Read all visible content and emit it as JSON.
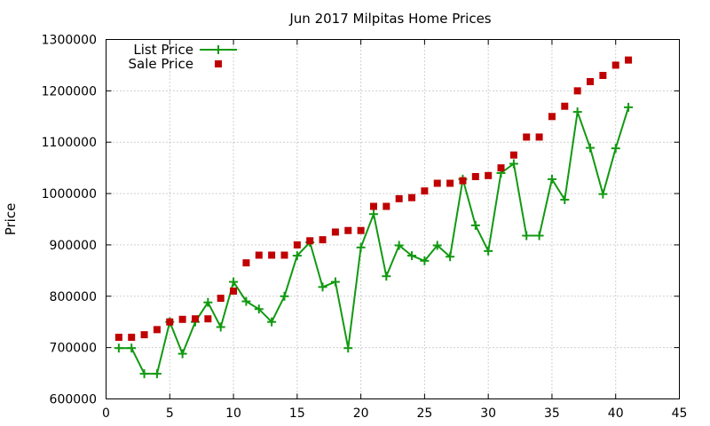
{
  "chart_data": {
    "type": "line",
    "title": "Jun 2017 Milpitas Home Prices",
    "xlabel": "",
    "ylabel": "Price",
    "xlim": [
      0,
      45
    ],
    "ylim": [
      600000,
      1300000
    ],
    "xticks": [
      0,
      5,
      10,
      15,
      20,
      25,
      30,
      35,
      40,
      45
    ],
    "yticks": [
      600000,
      700000,
      800000,
      900000,
      1000000,
      1100000,
      1200000,
      1300000
    ],
    "grid": true,
    "legend_position": "top-left",
    "series": [
      {
        "name": "List Price",
        "style": "line-plus",
        "color": "#119911",
        "x": [
          1,
          2,
          3,
          4,
          5,
          6,
          7,
          8,
          9,
          10,
          11,
          12,
          13,
          14,
          15,
          16,
          17,
          18,
          19,
          20,
          21,
          22,
          23,
          24,
          25,
          26,
          27,
          28,
          29,
          30,
          31,
          32,
          33,
          34,
          35,
          36,
          37,
          38,
          39,
          40,
          41
        ],
        "values": [
          699000,
          699000,
          649000,
          649000,
          750000,
          688000,
          750000,
          788000,
          740000,
          828000,
          790000,
          775000,
          750000,
          800000,
          879000,
          905000,
          818000,
          828000,
          699000,
          895000,
          960000,
          839000,
          899000,
          879000,
          869000,
          899000,
          877000,
          1028000,
          938000,
          888000,
          1040000,
          1058000,
          918000,
          918000,
          1028000,
          988000,
          1159000,
          1089000,
          999000,
          1088000,
          1168000
        ]
      },
      {
        "name": "Sale Price",
        "style": "square-points",
        "color": "#c00000",
        "x": [
          1,
          2,
          3,
          4,
          5,
          6,
          7,
          8,
          9,
          10,
          11,
          12,
          13,
          14,
          15,
          16,
          17,
          18,
          19,
          20,
          21,
          22,
          23,
          24,
          25,
          26,
          27,
          28,
          29,
          30,
          31,
          32,
          33,
          34,
          35,
          36,
          37,
          38,
          39,
          40,
          41
        ],
        "values": [
          720000,
          720000,
          725000,
          735000,
          750000,
          755000,
          756000,
          756000,
          796000,
          810000,
          865000,
          880000,
          880000,
          880000,
          900000,
          908000,
          910000,
          925000,
          928000,
          928000,
          975000,
          975000,
          990000,
          992000,
          1005000,
          1020000,
          1020000,
          1025000,
          1033000,
          1035000,
          1050000,
          1075000,
          1110000,
          1110000,
          1150000,
          1170000,
          1200000,
          1218000,
          1230000,
          1250000,
          1260000
        ]
      }
    ]
  }
}
